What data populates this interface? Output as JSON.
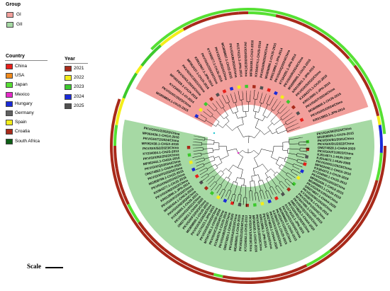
{
  "legend_group": {
    "title": "Group",
    "items": [
      {
        "label": "GI",
        "color": "#f2a09c"
      },
      {
        "label": "GII",
        "color": "#a6d9a4"
      }
    ]
  },
  "legend_country": {
    "title": "Country",
    "items": [
      {
        "label": "China",
        "color": "#e8201b"
      },
      {
        "label": "USA",
        "color": "#f08a1c"
      },
      {
        "label": "Japan",
        "color": "#56e033"
      },
      {
        "label": "Mexico",
        "color": "#e629c8"
      },
      {
        "label": "Hungary",
        "color": "#1a2bd8"
      },
      {
        "label": "Germany",
        "color": "#606060"
      },
      {
        "label": "Spain",
        "color": "#f4ee19"
      },
      {
        "label": "Croatia",
        "color": "#a82a1a"
      },
      {
        "label": "South Africa",
        "color": "#0e5e16"
      }
    ]
  },
  "legend_year": {
    "title": "Year",
    "items": [
      {
        "label": "2021",
        "color": "#a82a1a"
      },
      {
        "label": "2022",
        "color": "#f4ee19"
      },
      {
        "label": "2023",
        "color": "#3cc92d"
      },
      {
        "label": "2024",
        "color": "#1a2bd8"
      },
      {
        "label": "2025",
        "color": "#505050"
      }
    ]
  },
  "scale_label": "Scale",
  "tree": {
    "gi_labels": [
      "MG808804.1-CHJS-2015",
      "PKV/GIX/C/2023/China",
      "KY234001.1-GI-2014",
      "MF062439.1-CHJX-2016",
      "PKV/GIX/L/2023/China",
      "PKV/GIX/C/2021/China",
      "MF062437.1-CHJX-2016",
      "KR013907.1-JPN-2014",
      "PKV/GIX/Z/2023/China",
      "KY345877.1-CHJS-2016",
      "PKV/GIX/A/2024/China",
      "MG808807.1-CHJS-2015",
      "PKV/GIX/B/2024/China",
      "KU174121.1-JPN-2014",
      "PKV/GIX/D/2023/China",
      "MF062438.1-CHJX-2016",
      "KX364374.1-CHJS-2015",
      "PKV/GIX/N/2024/China",
      "MG808806.1-CHJS-2015",
      "KR013899.1-JPN-2014",
      "PKV/GIX/Q/2024/China",
      "KT184291.1-JPN-2014",
      "PKV/GIX/R/2024/China",
      "MG808805.1-CHJS-2015",
      "KR013901.1-JPN-2014",
      "PKV/GIX/S/2022/China",
      "KX364373.1-CHJS-2016",
      "KR013900.1-JPN-2014",
      "PKV/GIX/T/2024/China",
      "MG808808.1-CHJS-2015",
      "PKV/GIX/U/2024/China",
      "KR013893.1-JPN-2014"
    ],
    "gii_labels": [
      "PKV/GIX/W/2024/China",
      "MG808809.1-CHJS-2015",
      "PKV/GIX/B1/2021/China",
      "PKV/GIX/D1/2022/China",
      "OM274828.1-CHAH-2020",
      "PKV/GIX/F1/2022/China",
      "KJ914671.1-HUN-2007",
      "KJ914672.1-HUN-2008",
      "PKV/GIX/G1/2023/China",
      "MF062440.1-CHGX-2016",
      "KX364372.1-CHJS-2016",
      "KY234000.1-CHJS-2012",
      "PKV/GIX/H1/2023/China",
      "MF062436.1-CHGX-2015",
      "MG808803.1-CHJS-2015",
      "PKV/GIX/K1/2024/China",
      "OM274827.1-CHAH-2020",
      "PKV/GIX/M1/2023/China",
      "KY345878.1-CHJS-2016",
      "PKV/GIX/P1/2024/China",
      "MT647480.1-CHGD-2019",
      "PKV/GIX/Q1/2022/China",
      "OM274825.1-CHAH-2020",
      "PKV/GIX/R1/2023/China",
      "KU174122.1-JPN-2015",
      "PKV/GIX/S1/2024/China",
      "MG808802.1-CHJS-2015",
      "PKV/GIX/T1/2021/China",
      "KX364375.1-CHJS-2015",
      "PKV/GIX/U1/2023/China",
      "OM274826.1-CHAH-2020",
      "PKV/GIX/V1/2024/China",
      "KR013895.1-JPN-2014",
      "PKV/GIX/X1/2022/China",
      "MF062435.1-CHGX-2016",
      "PKV/GIX/Y1/2023/China",
      "KY234002.1-CHJS-2013",
      "PKV/GIX/Z1/2024/China",
      "MG808801.1-CHJS-2015",
      "PKV/GIX/A2/2023/China",
      "OM274824.1-CHAH-2020",
      "PKV/GIX/B2/2022/China",
      "KX364376.1-CHJS-2016",
      "PKV/GIX/C2/2024/China",
      "MT647481.1-CHGD-2019",
      "PKV/GIX/D2/2023/China",
      "KU174123.1-JPN-2015",
      "PKV/GIX/E2/2024/China",
      "MG808800.1-CHJS-2015",
      "PKV/GIX/F2/2023/China",
      "OM274823.1-CHAH-2020",
      "PKV/GIX/G2/2021/China",
      "KY234003.1-CHJS-2013",
      "PKV/GIX/H2/2024/China",
      "MF062434.1-CHGX-2016",
      "PKV/GIX/K2/2023/China",
      "KR013896.1-JPN-2014",
      "PKV/GIX/M2/2022/China",
      "KX364377.1-CHJS-2016",
      "PKV/GIX/N2/2024/China",
      "MG808799.1-CHJS-2015",
      "PKV/GIX/P2/2023/China",
      "OM274822.1-CHAH-2020",
      "PKV/GIX/Q2/2024/China",
      "MF062441.1-CHGX-2016",
      "PKV/GIX/R2/2022/China",
      "KY234004.1-CHJS-2013",
      "PKV/GIX/S2/2023/China",
      "MF062438.1-CHGX-2016",
      "PKV/GIX/T2/2024/China",
      "MF062436.1-CHGX-2016",
      "PKV/GIX/U2/2023/China"
    ]
  }
}
